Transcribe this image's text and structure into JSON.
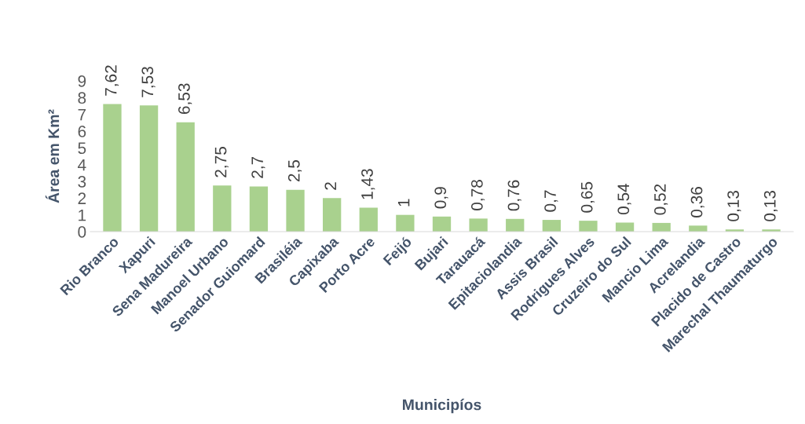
{
  "chart_data": {
    "type": "bar",
    "xlabel": "Municipíos",
    "ylabel": "Área em Km²",
    "categories": [
      "Rio Branco",
      "Xapuri",
      "Sena Madureira",
      "Manoel Urbano",
      "Senador Guiomard",
      "Brasiléia",
      "Capixaba",
      "Porto Acre",
      "Feijó",
      "Bujari",
      "Tarauacá",
      "Epitaciolandia",
      "Assis Brasil",
      "Rodrigues Alves",
      "Cruzeiro do Sul",
      "Mancio Lima",
      "Acrelandia",
      "Placido de Castro",
      "Marechal Thaumaturgo"
    ],
    "values": [
      7.62,
      7.53,
      6.53,
      2.75,
      2.7,
      2.5,
      2,
      1.43,
      1,
      0.9,
      0.78,
      0.76,
      0.7,
      0.65,
      0.54,
      0.52,
      0.36,
      0.13,
      0.13
    ],
    "value_labels": [
      "7,62",
      "7,53",
      "6,53",
      "2,75",
      "2,7",
      "2,5",
      "2",
      "1,43",
      "1",
      "0,9",
      "0,78",
      "0,76",
      "0,7",
      "0,65",
      "0,54",
      "0,52",
      "0,36",
      "0,13",
      "0,13"
    ],
    "color": "#a9d18e",
    "ylim": [
      0,
      9
    ],
    "yticks": [
      0,
      1,
      2,
      3,
      4,
      5,
      6,
      7,
      8,
      9
    ],
    "grid": false
  }
}
